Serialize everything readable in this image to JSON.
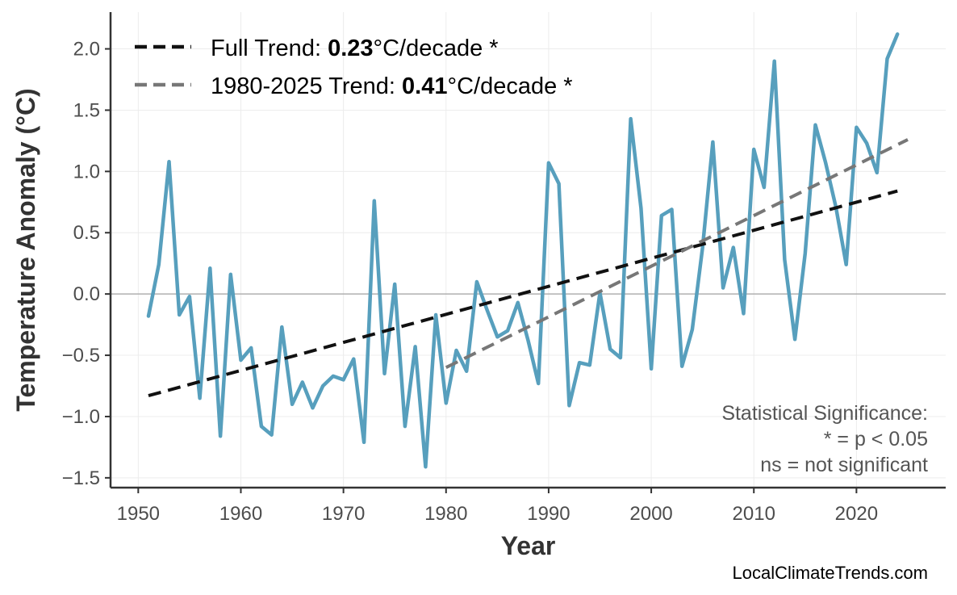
{
  "chart_data": {
    "type": "line",
    "xlabel": "Year",
    "ylabel": "Temperature Anomaly (°C)",
    "xlim": [
      1947.3,
      2028.7
    ],
    "ylim": [
      -1.58,
      2.3
    ],
    "xticks": [
      1950,
      1960,
      1970,
      1980,
      1990,
      2000,
      2010,
      2020
    ],
    "yticks": [
      -1.5,
      -1.0,
      -0.5,
      0.0,
      0.5,
      1.0,
      1.5,
      2.0
    ],
    "ytick_labels": [
      "−1.5",
      "−1.0",
      "−0.5",
      "0.0",
      "0.5",
      "1.0",
      "1.5",
      "2.0"
    ],
    "grid": true,
    "zero_line": true,
    "legend_position": "top-left",
    "series": [
      {
        "kind": "anomaly",
        "color": "#579fbd",
        "x": [
          1951,
          1952,
          1953,
          1954,
          1955,
          1956,
          1957,
          1958,
          1959,
          1960,
          1961,
          1962,
          1963,
          1964,
          1965,
          1966,
          1967,
          1968,
          1969,
          1970,
          1971,
          1972,
          1973,
          1974,
          1975,
          1976,
          1977,
          1978,
          1979,
          1980,
          1981,
          1982,
          1983,
          1984,
          1985,
          1986,
          1987,
          1988,
          1989,
          1990,
          1991,
          1992,
          1993,
          1994,
          1995,
          1996,
          1997,
          1998,
          1999,
          2000,
          2001,
          2002,
          2003,
          2004,
          2005,
          2006,
          2007,
          2008,
          2009,
          2010,
          2011,
          2012,
          2013,
          2014,
          2015,
          2016,
          2017,
          2018,
          2019,
          2020,
          2021,
          2022,
          2023,
          2024
        ],
        "y": [
          -0.18,
          0.24,
          1.08,
          -0.17,
          -0.02,
          -0.85,
          0.21,
          -1.16,
          0.16,
          -0.54,
          -0.44,
          -1.08,
          -1.15,
          -0.27,
          -0.9,
          -0.72,
          -0.93,
          -0.75,
          -0.67,
          -0.7,
          -0.53,
          -1.21,
          0.76,
          -0.65,
          0.08,
          -1.08,
          -0.43,
          -1.41,
          -0.17,
          -0.89,
          -0.46,
          -0.63,
          0.1,
          -0.13,
          -0.35,
          -0.3,
          -0.07,
          -0.38,
          -0.73,
          1.07,
          0.9,
          -0.91,
          -0.56,
          -0.58,
          0.01,
          -0.45,
          -0.52,
          1.43,
          0.7,
          -0.61,
          0.64,
          0.69,
          -0.59,
          -0.29,
          0.38,
          1.24,
          0.05,
          0.38,
          -0.16,
          1.18,
          0.87,
          1.9,
          0.28,
          -0.37,
          0.33,
          1.38,
          1.07,
          0.71,
          0.24,
          1.36,
          1.23,
          0.99,
          1.92,
          2.12
        ]
      },
      {
        "kind": "trend",
        "label_prefix": "Full Trend: ",
        "label_value": "0.23",
        "label_suffix": "°C/decade *",
        "color": "#111111",
        "x": [
          1951,
          2024
        ],
        "y": [
          -0.83,
          0.84
        ]
      },
      {
        "kind": "trend",
        "label_prefix": "1980-2025 Trend: ",
        "label_value": "0.41",
        "label_suffix": "°C/decade *",
        "color": "#777777",
        "x": [
          1980,
          2025
        ],
        "y": [
          -0.6,
          1.26
        ]
      }
    ],
    "annotations": {
      "significance_lines": [
        "Statistical Significance:",
        "* = p < 0.05",
        "ns = not significant"
      ],
      "source": "LocalClimateTrends.com"
    }
  }
}
